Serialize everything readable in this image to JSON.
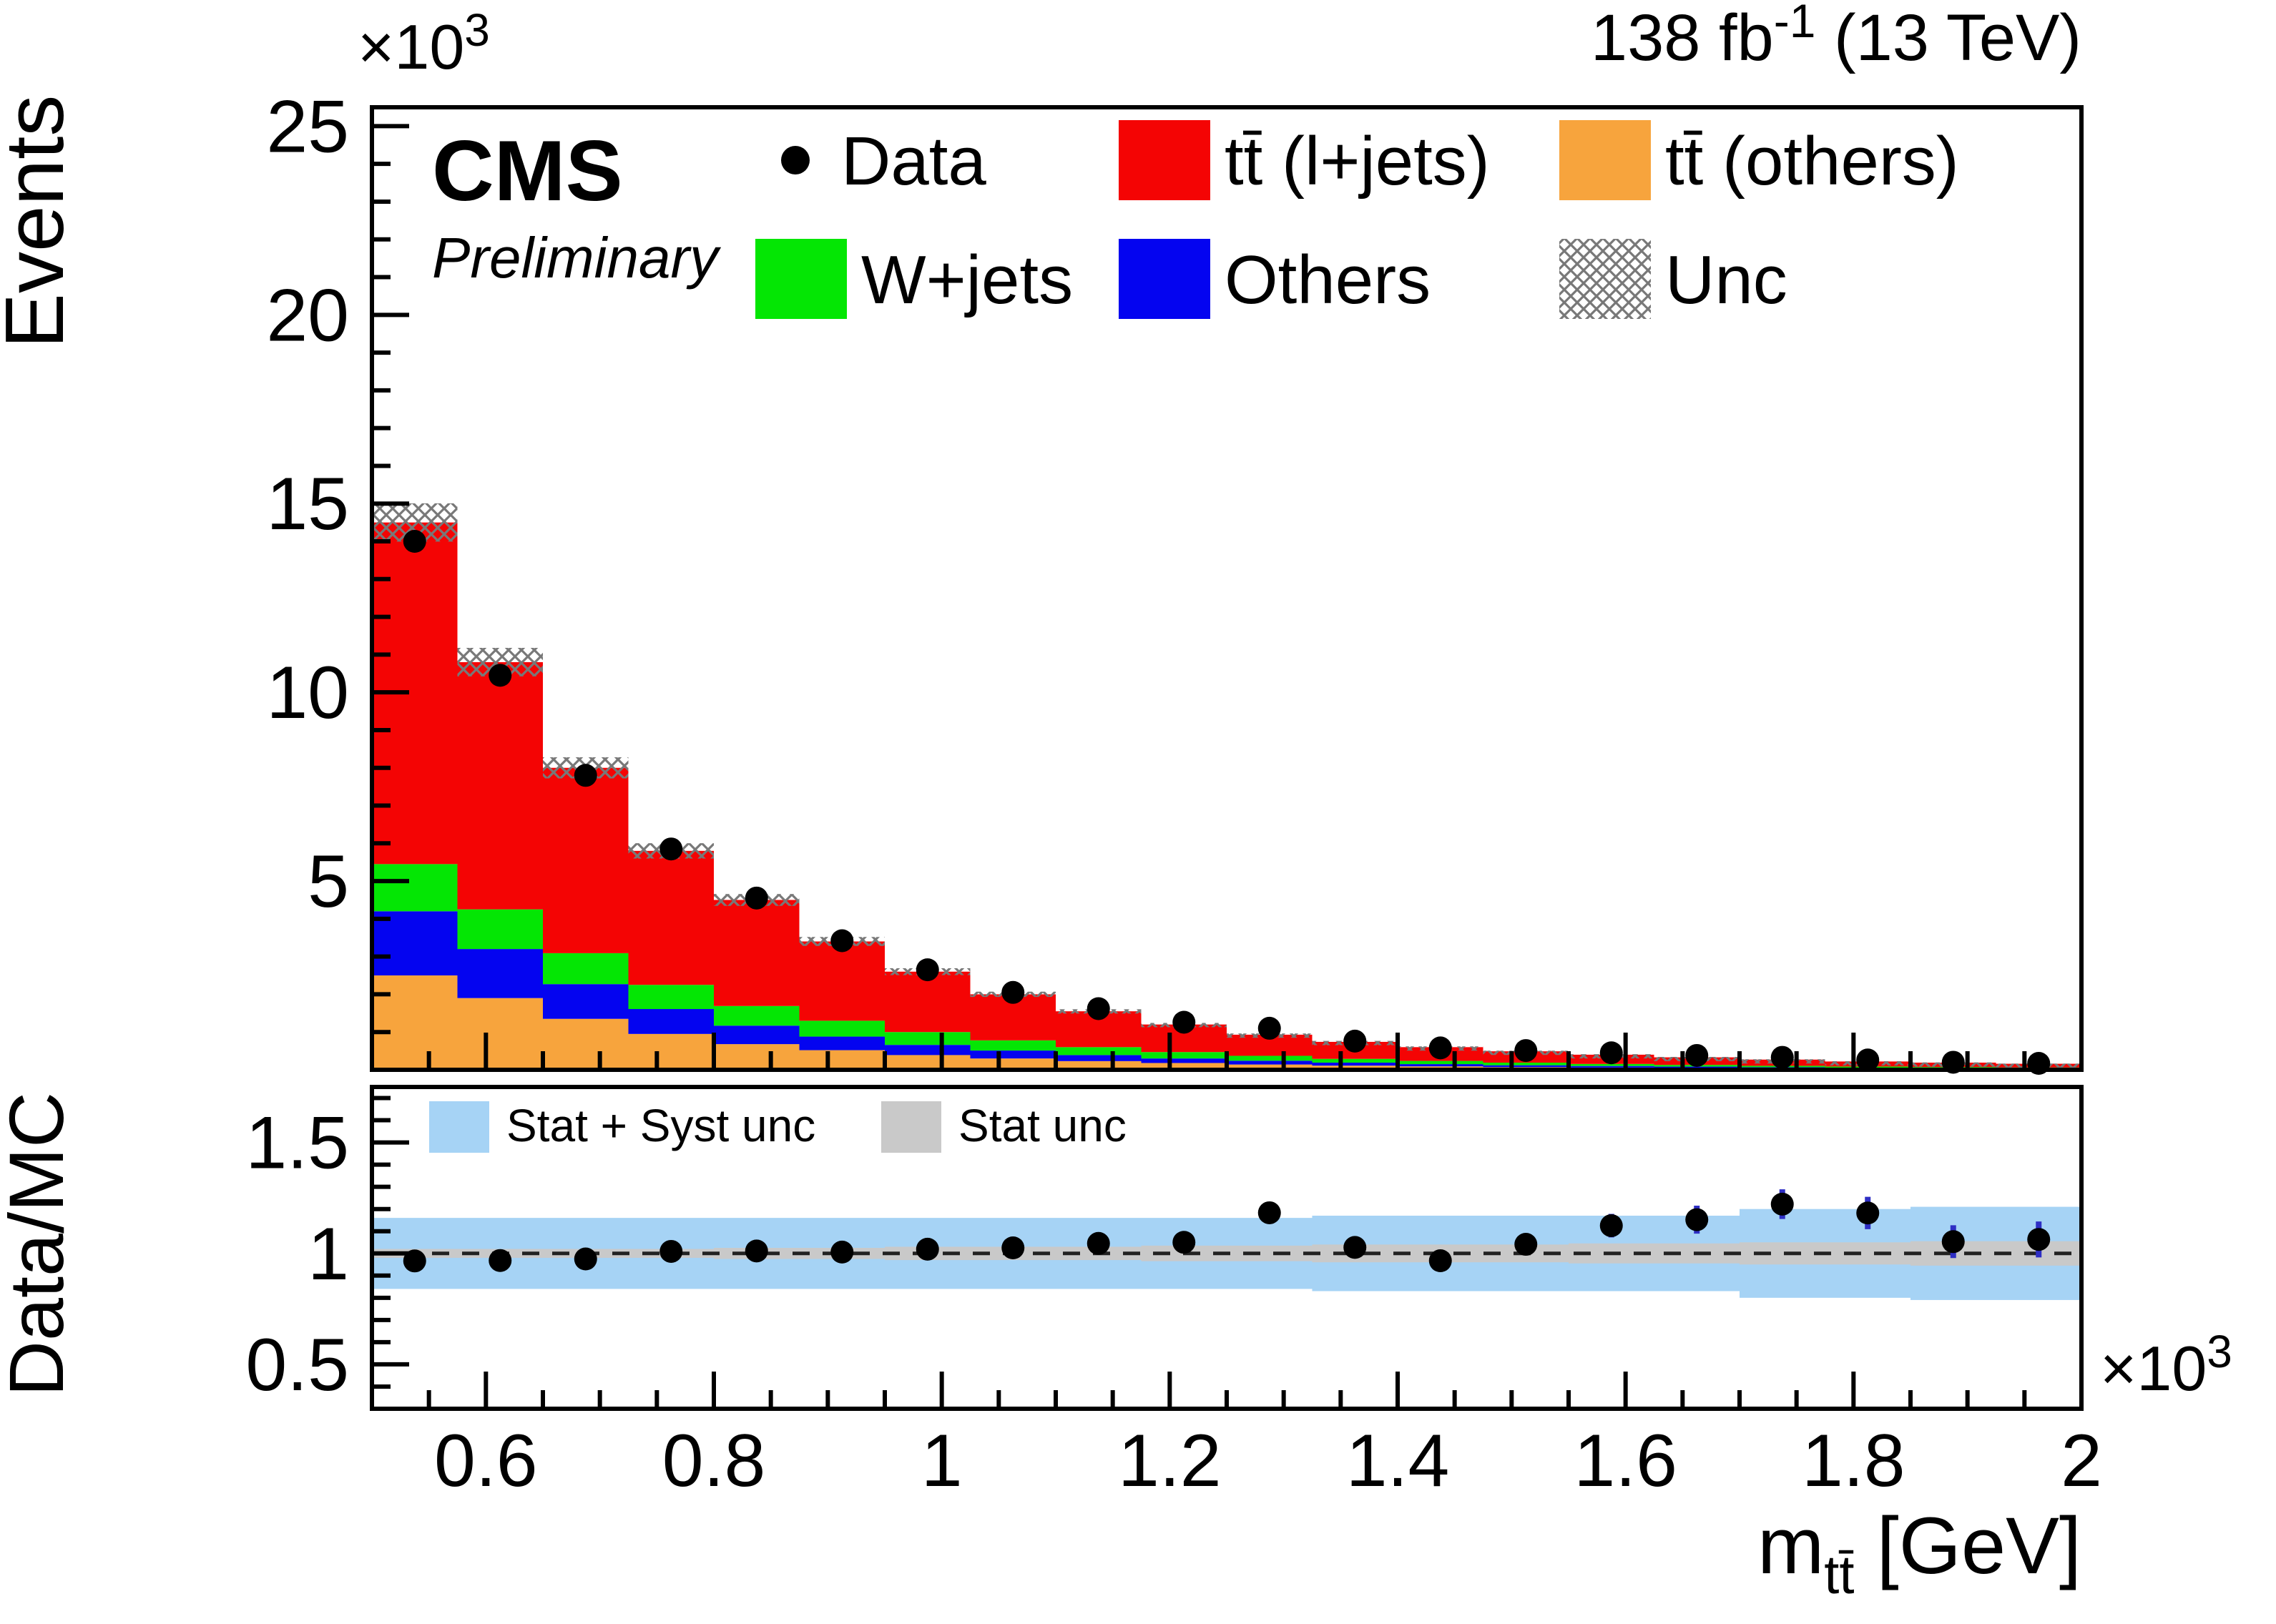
{
  "header": {
    "experiment": "CMS",
    "preliminary": "Preliminary",
    "lumi_prefix": "138 fb",
    "lumi_sup": "-1",
    "lumi_suffix": " (13 TeV)"
  },
  "labels": {
    "ylabel_top": "Events",
    "ylabel_bottom": "Data/MC",
    "y_scale_base": "×10",
    "y_scale_sup": "3",
    "x_scale_base": "×10",
    "x_scale_sup": "3",
    "xtitle_base": "m",
    "xtitle_sub": "tt̄",
    "xtitle_suffix": " [GeV]"
  },
  "legend": {
    "data": "Data",
    "tt_ljets": "tt̄ (l+jets)",
    "tt_others": "tt̄ (others)",
    "wjets": "W+jets",
    "others": "Others",
    "unc": "Unc"
  },
  "ratio_legend": {
    "stat_syst": "Stat + Syst unc",
    "stat": "Stat unc"
  },
  "chart_data": {
    "type": "stacked-histogram-with-ratio",
    "title": "CMS Preliminary 138 fb-1 (13 TeV)",
    "xlabel": "m_ttbar [GeV]",
    "ylabel_top": "Events (×10³)",
    "ylabel_bottom": "Data/MC",
    "xlim": [
      500,
      2000
    ],
    "ylim_top": [
      0,
      25500
    ],
    "ylim_ratio": [
      0.3,
      1.75
    ],
    "x_axis_units_note": "×10³",
    "y_axis_units_note": "×10³",
    "legend_position": "top-inside",
    "grid": false,
    "bin_edges": [
      500,
      575,
      650,
      725,
      800,
      875,
      950,
      1025,
      1100,
      1175,
      1250,
      1325,
      1400,
      1475,
      1550,
      1625,
      1700,
      1775,
      1850,
      1925,
      2000
    ],
    "series": [
      {
        "key": "tt-others",
        "name": "tt̄ (others)",
        "color": "#f7a43d",
        "values": [
          2500,
          1900,
          1350,
          950,
          680,
          520,
          390,
          300,
          230,
          180,
          140,
          110,
          90,
          70,
          60,
          50,
          40,
          33,
          28,
          24
        ]
      },
      {
        "key": "others",
        "name": "Others",
        "color": "#0404f0",
        "values": [
          1700,
          1300,
          920,
          660,
          490,
          360,
          270,
          210,
          160,
          120,
          100,
          80,
          60,
          50,
          40,
          34,
          28,
          23,
          19,
          16
        ]
      },
      {
        "key": "wjets",
        "name": "W+jets",
        "color": "#04e604",
        "values": [
          1250,
          1050,
          820,
          640,
          520,
          420,
          340,
          270,
          210,
          170,
          130,
          100,
          85,
          70,
          55,
          46,
          38,
          31,
          26,
          22
        ]
      },
      {
        "key": "tt-ljets",
        "name": "tt̄ (l+jets)",
        "color": "#f40404",
        "values": [
          9050,
          6550,
          4910,
          3550,
          2810,
          2100,
          1600,
          1220,
          950,
          730,
          560,
          450,
          365,
          300,
          245,
          200,
          164,
          133,
          117,
          98
        ]
      }
    ],
    "mc_totals": [
      14500,
      10800,
      8000,
      5800,
      4500,
      3400,
      2600,
      2000,
      1550,
      1200,
      930,
      740,
      600,
      490,
      400,
      330,
      270,
      220,
      190,
      160
    ],
    "mc_unc_fraction": 0.035,
    "data_points": {
      "x": [
        537.5,
        612.5,
        687.5,
        762.5,
        837.5,
        912.5,
        987.5,
        1062.5,
        1137.5,
        1212.5,
        1287.5,
        1362.5,
        1437.5,
        1512.5,
        1587.5,
        1662.5,
        1737.5,
        1812.5,
        1887.5,
        1962.5
      ],
      "y": [
        14000,
        10450,
        7800,
        5850,
        4550,
        3420,
        2650,
        2050,
        1620,
        1260,
        1100,
        760,
        580,
        510,
        450,
        380,
        330,
        260,
        200,
        170
      ]
    },
    "ratio": {
      "values": [
        0.966,
        0.968,
        0.975,
        1.009,
        1.011,
        1.006,
        1.019,
        1.025,
        1.045,
        1.05,
        1.183,
        1.027,
        0.967,
        1.041,
        1.125,
        1.152,
        1.222,
        1.182,
        1.053,
        1.063
      ],
      "errors": [
        0.008,
        0.01,
        0.011,
        0.013,
        0.015,
        0.017,
        0.02,
        0.023,
        0.026,
        0.03,
        0.036,
        0.037,
        0.04,
        0.047,
        0.053,
        0.063,
        0.067,
        0.073,
        0.074,
        0.081
      ],
      "stat_syst_halfwidth": [
        0.16,
        0.16,
        0.16,
        0.16,
        0.16,
        0.16,
        0.16,
        0.16,
        0.16,
        0.16,
        0.16,
        0.17,
        0.17,
        0.17,
        0.17,
        0.17,
        0.2,
        0.2,
        0.21,
        0.21
      ],
      "stat_halfwidth": [
        0.02,
        0.02,
        0.02,
        0.02,
        0.025,
        0.025,
        0.03,
        0.03,
        0.03,
        0.035,
        0.035,
        0.04,
        0.04,
        0.04,
        0.045,
        0.045,
        0.05,
        0.05,
        0.055,
        0.055
      ]
    },
    "y_ticks_top": {
      "values": [
        5000,
        10000,
        15000,
        20000,
        25000
      ],
      "labels": [
        "5",
        "10",
        "15",
        "20",
        "25"
      ]
    },
    "x_ticks": {
      "values": [
        600,
        800,
        1000,
        1200,
        1400,
        1600,
        1800,
        2000
      ],
      "labels": [
        "0.6",
        "0.8",
        "1",
        "1.2",
        "1.4",
        "1.6",
        "1.8",
        "2"
      ]
    },
    "ratio_ticks": {
      "values": [
        0.5,
        1,
        1.5
      ],
      "labels": [
        "0.5",
        "1",
        "1.5"
      ]
    },
    "colors": {
      "stat_syst_band": "#a6d3f5",
      "stat_band": "#c9c9c9",
      "ratio_error": "#2e2ec4",
      "unc_hatch": "#787878",
      "data_marker": "#000000",
      "frame": "#000000"
    }
  }
}
